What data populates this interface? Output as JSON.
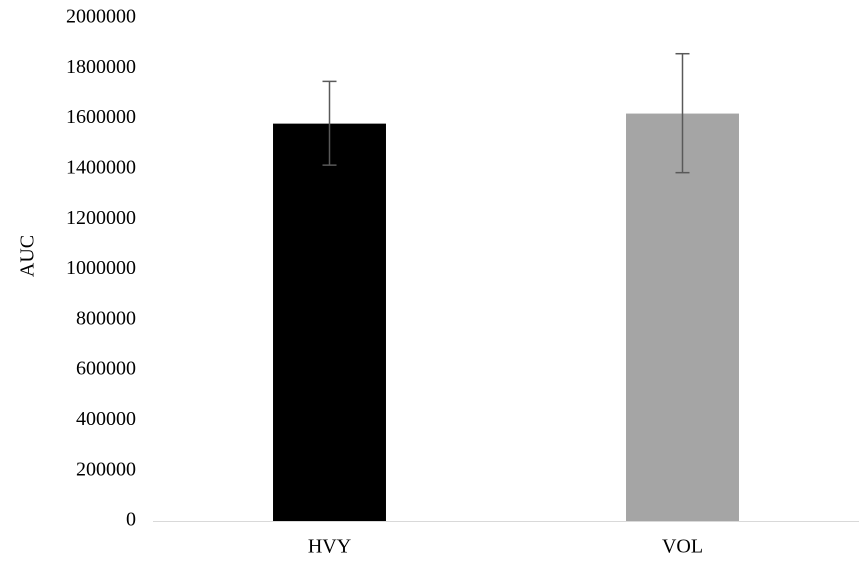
{
  "chart_data": {
    "type": "bar",
    "title": "",
    "xlabel": "",
    "ylabel": "AUC",
    "categories": [
      "HVY",
      "VOL"
    ],
    "values": [
      1580000,
      1620000
    ],
    "error_bars": [
      {
        "low": 1415000,
        "high": 1748000
      },
      {
        "low": 1385000,
        "high": 1858000
      }
    ],
    "colors": [
      "#000000",
      "#a5a5a5"
    ],
    "error_bar_color": "#595959",
    "ylim": [
      0,
      2000000
    ],
    "yticks": [
      0,
      200000,
      400000,
      600000,
      800000,
      1000000,
      1200000,
      1400000,
      1600000,
      1800000,
      2000000
    ],
    "ytick_labels": [
      "0",
      "200000",
      "400000",
      "600000",
      "800000",
      "1000000",
      "1200000",
      "1400000",
      "1600000",
      "1800000",
      "2000000"
    ],
    "grid": false,
    "legend": "none",
    "axis_color": "#d9d9d9"
  }
}
